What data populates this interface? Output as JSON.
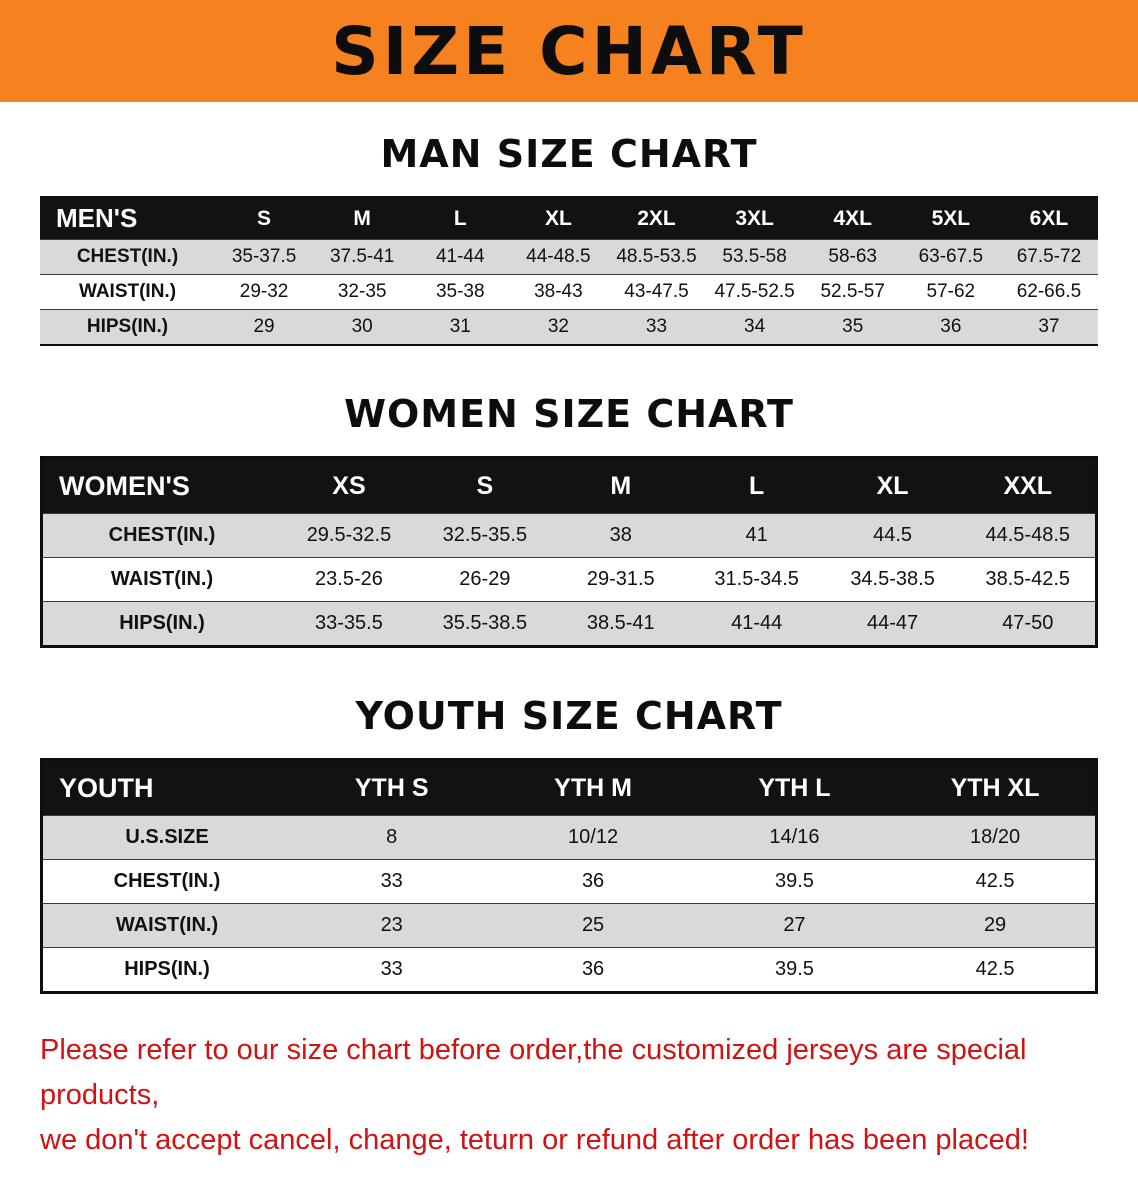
{
  "banner": {
    "title": "SIZE CHART"
  },
  "colors": {
    "banner_bg": "#F5821F",
    "table_header_bg": "#121212",
    "row_shade": "#D9D9D9",
    "footer_text": "#D11212"
  },
  "sections": [
    {
      "heading": "MAN SIZE CHART",
      "table": {
        "header": [
          "MEN'S",
          "S",
          "M",
          "L",
          "XL",
          "2XL",
          "3XL",
          "4XL",
          "5XL",
          "6XL"
        ],
        "rows": [
          [
            "CHEST(IN.)",
            "35-37.5",
            "37.5-41",
            "41-44",
            "44-48.5",
            "48.5-53.5",
            "53.5-58",
            "58-63",
            "63-67.5",
            "67.5-72"
          ],
          [
            "WAIST(IN.)",
            "29-32",
            "32-35",
            "35-38",
            "38-43",
            "43-47.5",
            "47.5-52.5",
            "52.5-57",
            "57-62",
            "62-66.5"
          ],
          [
            "HIPS(IN.)",
            "29",
            "30",
            "31",
            "32",
            "33",
            "34",
            "35",
            "36",
            "37"
          ]
        ]
      }
    },
    {
      "heading": "WOMEN SIZE CHART",
      "table": {
        "header": [
          "WOMEN'S",
          "XS",
          "S",
          "M",
          "L",
          "XL",
          "XXL"
        ],
        "rows": [
          [
            "CHEST(IN.)",
            "29.5-32.5",
            "32.5-35.5",
            "38",
            "41",
            "44.5",
            "44.5-48.5"
          ],
          [
            "WAIST(IN.)",
            "23.5-26",
            "26-29",
            "29-31.5",
            "31.5-34.5",
            "34.5-38.5",
            "38.5-42.5"
          ],
          [
            "HIPS(IN.)",
            "33-35.5",
            "35.5-38.5",
            "38.5-41",
            "41-44",
            "44-47",
            "47-50"
          ]
        ]
      }
    },
    {
      "heading": "YOUTH SIZE CHART",
      "table": {
        "header": [
          "YOUTH",
          "YTH S",
          "YTH M",
          "YTH L",
          "YTH XL"
        ],
        "rows": [
          [
            "U.S.SIZE",
            "8",
            "10/12",
            "14/16",
            "18/20"
          ],
          [
            "CHEST(IN.)",
            "33",
            "36",
            "39.5",
            "42.5"
          ],
          [
            "WAIST(IN.)",
            "23",
            "25",
            "27",
            "29"
          ],
          [
            "HIPS(IN.)",
            "33",
            "36",
            "39.5",
            "42.5"
          ]
        ]
      }
    }
  ],
  "footer": {
    "line1": "Please refer to our size chart before order,the customized jerseys are special products,",
    "line2": "we don't accept cancel, change, teturn or refund after order has been placed!"
  }
}
